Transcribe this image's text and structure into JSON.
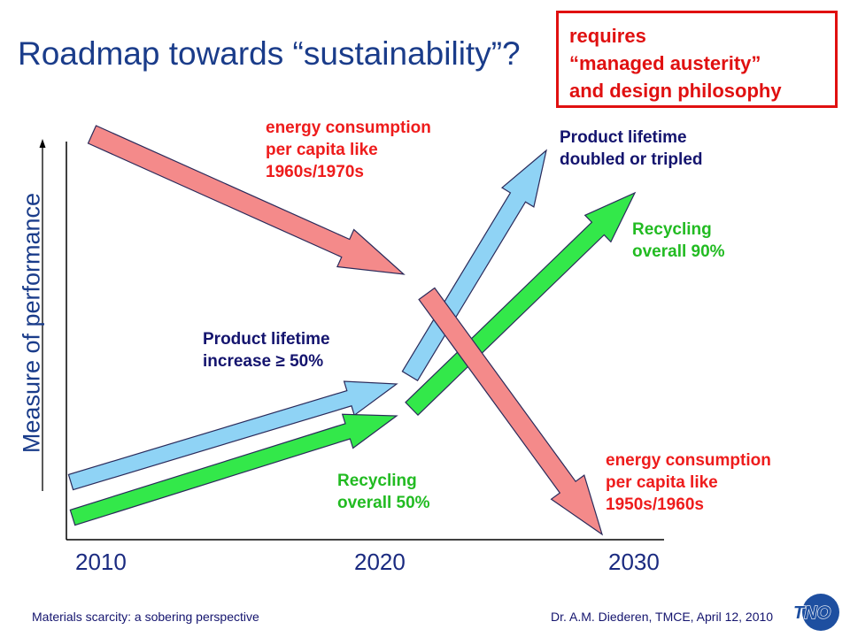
{
  "title": "Roadmap towards “sustainability”?",
  "callout": {
    "lines": [
      "requires",
      "“managed austerity”",
      "and design philosophy"
    ]
  },
  "axis": {
    "y_label": "Measure of performance",
    "x_ticks": [
      "2010",
      "2020",
      "2030"
    ]
  },
  "labels": {
    "energy_top": [
      "energy consumption",
      "per capita like",
      "1960s/1970s"
    ],
    "lifetime_top": [
      "Product lifetime",
      "doubled or tripled"
    ],
    "recycling_top": [
      "Recycling",
      "overall 90%"
    ],
    "lifetime_mid": [
      "Product lifetime",
      "increase ≥ 50%"
    ],
    "recycling_mid": [
      "Recycling",
      "overall 50%"
    ],
    "energy_bottom": [
      "energy consumption",
      "per capita like",
      "1950s/1960s"
    ]
  },
  "colors": {
    "energy": "#f48a8a",
    "lifetime": "#8fd3f5",
    "recycling": "#33e84a",
    "outline": "#2a2a5a"
  },
  "footer": {
    "left": "Materials scarcity: a sobering perspective",
    "right": "Dr. A.M. Diederen, TMCE, April 12, 2010"
  },
  "logo": {
    "text": "TNO"
  }
}
